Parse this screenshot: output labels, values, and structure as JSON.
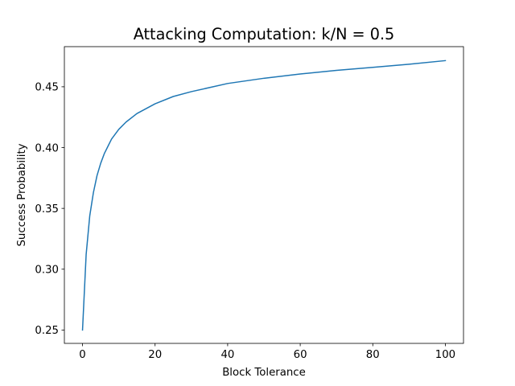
{
  "chart_data": {
    "type": "line",
    "title": "Attacking Computation: k/N = 0.5",
    "xlabel": "Block Tolerance",
    "ylabel": "Success Probability",
    "xlim": [
      -5,
      105
    ],
    "ylim": [
      0.239,
      0.483
    ],
    "xticks": [
      0,
      20,
      40,
      60,
      80,
      100
    ],
    "yticks": [
      0.25,
      0.3,
      0.35,
      0.4,
      0.45
    ],
    "xtick_labels": [
      "0",
      "20",
      "40",
      "60",
      "80",
      "100"
    ],
    "ytick_labels": [
      "0.25",
      "0.30",
      "0.35",
      "0.40",
      "0.45"
    ],
    "grid": false,
    "legend": "none",
    "series": [
      {
        "color": "#1f77b4",
        "x": [
          0,
          1,
          2,
          3,
          4,
          5,
          6,
          7,
          8,
          10,
          12,
          15,
          20,
          25,
          30,
          40,
          50,
          60,
          70,
          80,
          90,
          100
        ],
        "y": [
          0.25,
          0.312,
          0.344,
          0.363,
          0.377,
          0.387,
          0.395,
          0.401,
          0.407,
          0.415,
          0.421,
          0.428,
          0.436,
          0.442,
          0.446,
          0.4527,
          0.457,
          0.4605,
          0.4635,
          0.466,
          0.4685,
          0.4715
        ]
      }
    ]
  }
}
